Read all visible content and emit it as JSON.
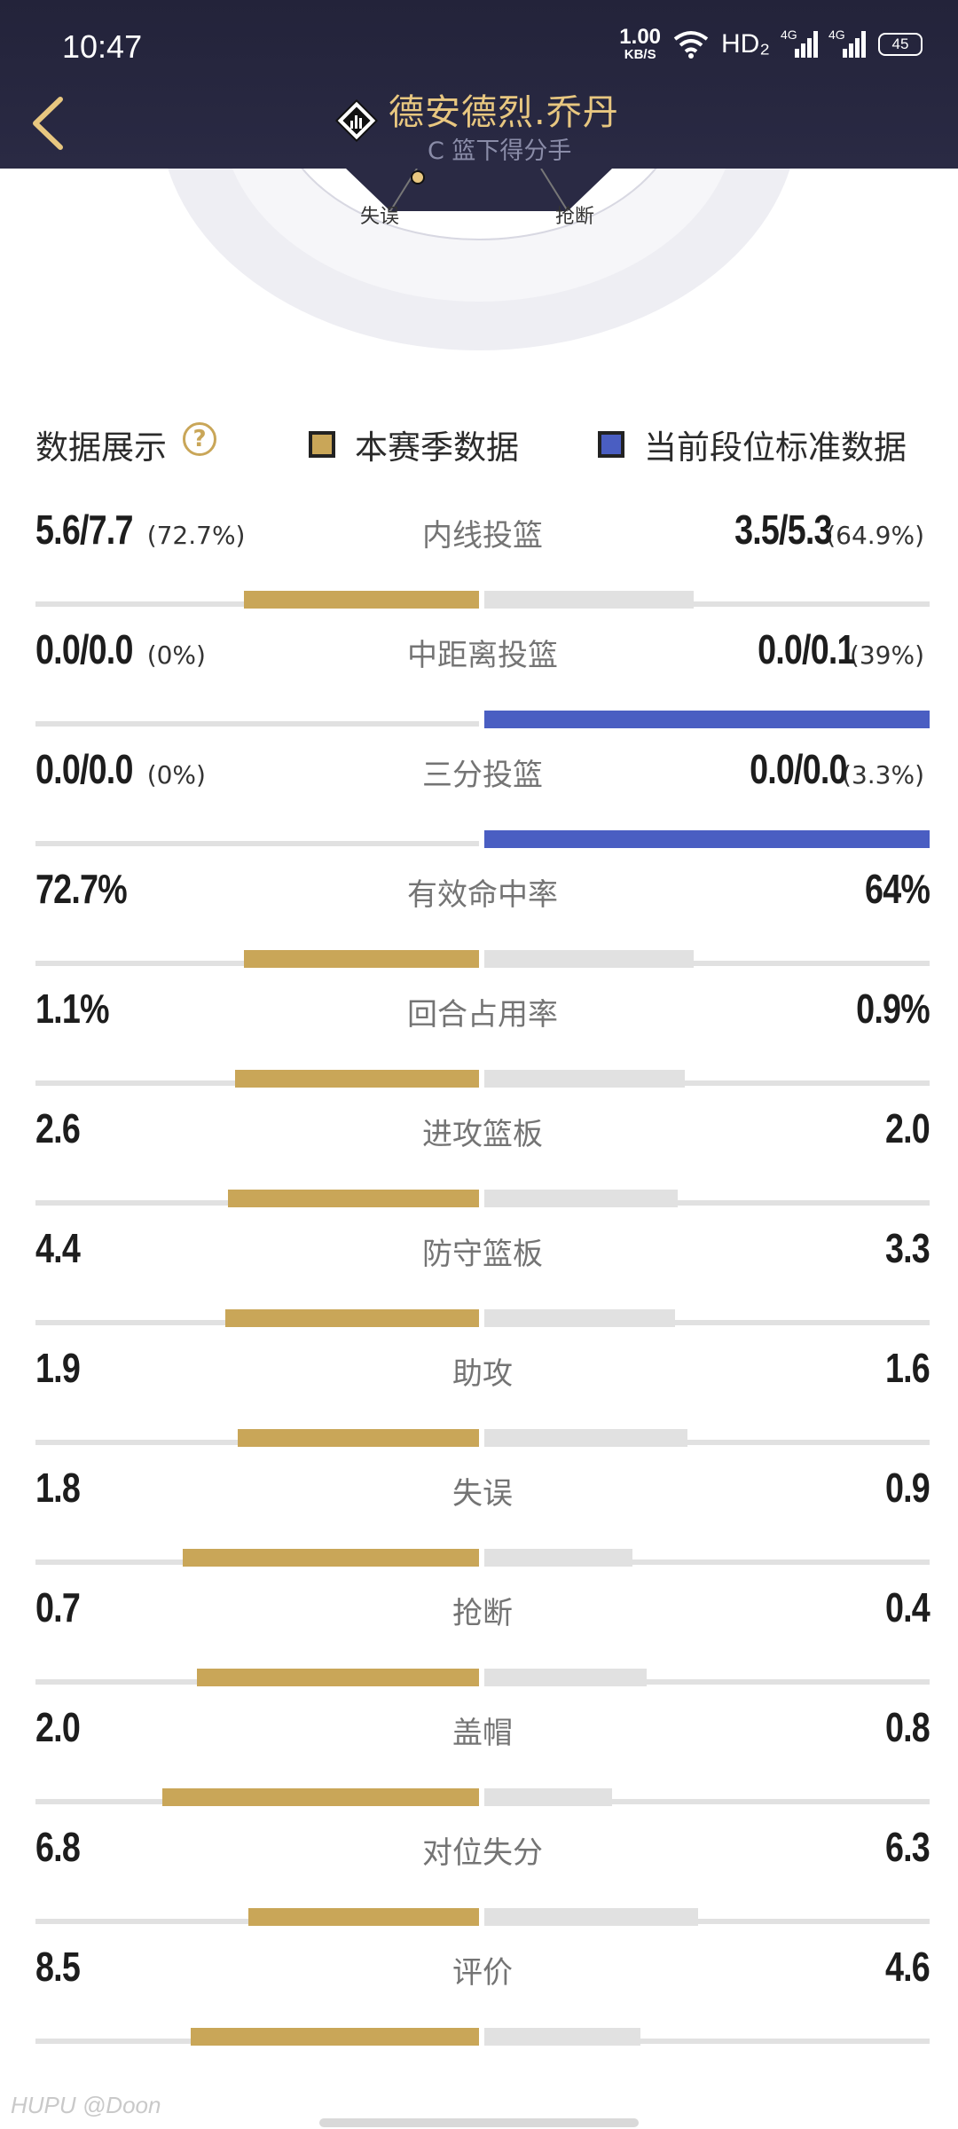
{
  "status": {
    "time": "10:47",
    "net_speed_value": "1.00",
    "net_speed_unit": "KB/S",
    "hd_label": "HD₂",
    "signal_label": "4G",
    "battery": "45"
  },
  "header": {
    "title": "德安德烈.乔丹",
    "subtitle": "C 篮下得分手"
  },
  "radar": {
    "label_left": "失误",
    "label_right": "抢断"
  },
  "legend": {
    "title": "数据展示",
    "help_icon": "question-icon",
    "season_label": "本赛季数据",
    "standard_label": "当前段位标准数据"
  },
  "colors": {
    "gold": "#c9a658",
    "blue": "#4a5ec2",
    "gray": "#e1e1e1",
    "header": "#23233a"
  },
  "stats": [
    {
      "label": "内线投篮",
      "left": "5.6/7.7",
      "left_pct": "(72.7%)",
      "right": "3.5/5.3",
      "right_pct": "(64.9%)",
      "left_fill": 0.53,
      "right_fill": 0.47,
      "right_color": "gray"
    },
    {
      "label": "中距离投篮",
      "left": "0.0/0.0",
      "left_pct": "(0%)",
      "right": "0.0/0.1",
      "right_pct": "(39%)",
      "left_fill": 0,
      "right_fill": 1,
      "right_color": "blue"
    },
    {
      "label": "三分投篮",
      "left": "0.0/0.0",
      "left_pct": "(0%)",
      "right": "0.0/0.0",
      "right_pct": "(3.3%)",
      "left_fill": 0,
      "right_fill": 1,
      "right_color": "blue"
    },
    {
      "label": "有效命中率",
      "left": "72.7%",
      "left_pct": "",
      "right": "64%",
      "right_pct": "",
      "left_fill": 0.53,
      "right_fill": 0.47,
      "right_color": "gray"
    },
    {
      "label": "回合占用率",
      "left": "1.1%",
      "left_pct": "",
      "right": "0.9%",
      "right_pct": "",
      "left_fill": 0.55,
      "right_fill": 0.45,
      "right_color": "gray"
    },
    {
      "label": "进攻篮板",
      "left": "2.6",
      "left_pct": "",
      "right": "2.0",
      "right_pct": "",
      "left_fill": 0.565,
      "right_fill": 0.435,
      "right_color": "gray"
    },
    {
      "label": "防守篮板",
      "left": "4.4",
      "left_pct": "",
      "right": "3.3",
      "right_pct": "",
      "left_fill": 0.571,
      "right_fill": 0.429,
      "right_color": "gray"
    },
    {
      "label": "助攻",
      "left": "1.9",
      "left_pct": "",
      "right": "1.6",
      "right_pct": "",
      "left_fill": 0.543,
      "right_fill": 0.457,
      "right_color": "gray"
    },
    {
      "label": "失误",
      "left": "1.8",
      "left_pct": "",
      "right": "0.9",
      "right_pct": "",
      "left_fill": 0.667,
      "right_fill": 0.333,
      "right_color": "gray"
    },
    {
      "label": "抢断",
      "left": "0.7",
      "left_pct": "",
      "right": "0.4",
      "right_pct": "",
      "left_fill": 0.636,
      "right_fill": 0.364,
      "right_color": "gray"
    },
    {
      "label": "盖帽",
      "left": "2.0",
      "left_pct": "",
      "right": "0.8",
      "right_pct": "",
      "left_fill": 0.714,
      "right_fill": 0.286,
      "right_color": "gray"
    },
    {
      "label": "对位失分",
      "left": "6.8",
      "left_pct": "",
      "right": "6.3",
      "right_pct": "",
      "left_fill": 0.519,
      "right_fill": 0.481,
      "right_color": "gray"
    },
    {
      "label": "评价",
      "left": "8.5",
      "left_pct": "",
      "right": "4.6",
      "right_pct": "",
      "left_fill": 0.649,
      "right_fill": 0.351,
      "right_color": "gray"
    }
  ],
  "watermark": "HUPU @Doon"
}
